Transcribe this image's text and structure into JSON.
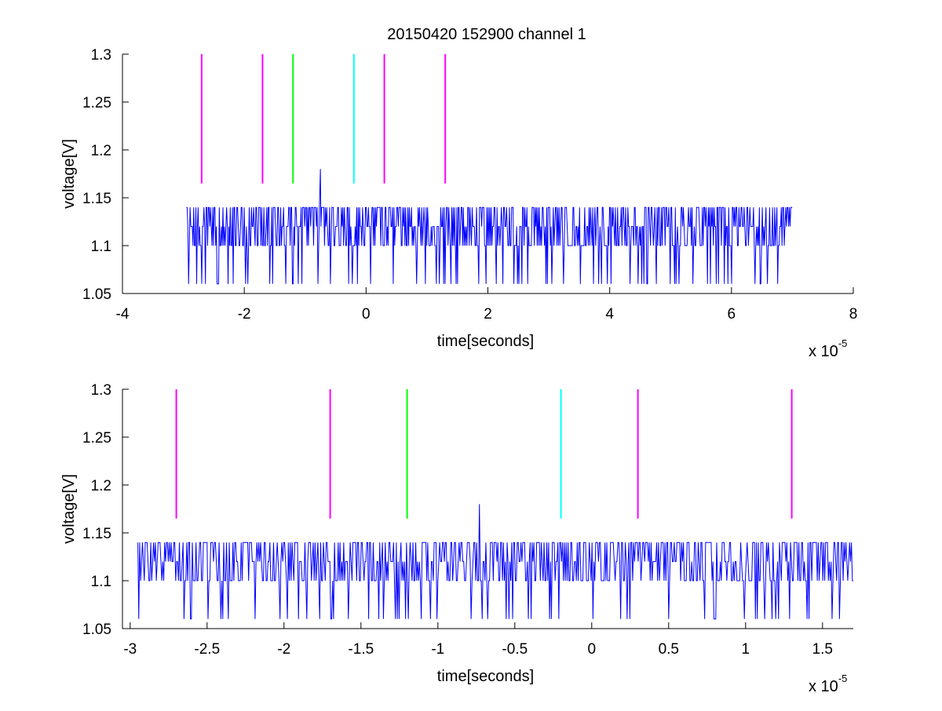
{
  "figure": {
    "title": "20150420 152900 channel 1"
  },
  "chart_data": [
    {
      "type": "line",
      "title": "20150420 152900 channel 1",
      "xlabel": "time[seconds]",
      "ylabel": "voltage[V]",
      "x_multiplier": "x 10",
      "x_exponent": "-5",
      "xlim": [
        -4,
        8
      ],
      "ylim": [
        1.05,
        1.3
      ],
      "xticks": [
        -4,
        -2,
        0,
        2,
        4,
        6,
        8
      ],
      "xtick_labels": [
        "-4",
        "-2",
        "0",
        "2",
        "4",
        "6",
        "8"
      ],
      "yticks": [
        1.05,
        1.1,
        1.15,
        1.2,
        1.25,
        1.3
      ],
      "ytick_labels": [
        "1.05",
        "1.1",
        "1.15",
        "1.2",
        "1.25",
        "1.3"
      ],
      "grid": false,
      "series": [
        {
          "color": "#0000ff",
          "signal": {
            "x_start": -2.95,
            "x_end": 7.0,
            "levels": [
              1.06,
              1.1,
              1.12,
              1.14
            ],
            "baseline": 1.1,
            "spike": {
              "x": -0.75,
              "y": 1.18
            }
          }
        }
      ],
      "markers": [
        {
          "x": -2.7,
          "y_from": 1.165,
          "y_to": 1.3,
          "color": "#ff00ff"
        },
        {
          "x": -1.7,
          "y_from": 1.165,
          "y_to": 1.3,
          "color": "#ff00ff"
        },
        {
          "x": -1.2,
          "y_from": 1.165,
          "y_to": 1.3,
          "color": "#00ff00"
        },
        {
          "x": -0.2,
          "y_from": 1.165,
          "y_to": 1.3,
          "color": "#00ffff"
        },
        {
          "x": 0.3,
          "y_from": 1.165,
          "y_to": 1.3,
          "color": "#ff00ff"
        },
        {
          "x": 1.3,
          "y_from": 1.165,
          "y_to": 1.3,
          "color": "#ff00ff"
        }
      ]
    },
    {
      "type": "line",
      "title": "",
      "xlabel": "time[seconds]",
      "ylabel": "voltage[V]",
      "x_multiplier": "x 10",
      "x_exponent": "-5",
      "xlim": [
        -3.05,
        1.7
      ],
      "ylim": [
        1.05,
        1.3
      ],
      "xticks": [
        -3,
        -2.5,
        -2,
        -1.5,
        -1,
        -0.5,
        0,
        0.5,
        1,
        1.5
      ],
      "xtick_labels": [
        "-3",
        "-2.5",
        "-2",
        "-1.5",
        "-1",
        "-0.5",
        "0",
        "0.5",
        "1",
        "1.5"
      ],
      "yticks": [
        1.05,
        1.1,
        1.15,
        1.2,
        1.25,
        1.3
      ],
      "ytick_labels": [
        "1.05",
        "1.1",
        "1.15",
        "1.2",
        "1.25",
        "1.3"
      ],
      "grid": false,
      "series": [
        {
          "color": "#0000ff",
          "signal": {
            "x_start": -2.95,
            "x_end": 1.7,
            "levels": [
              1.06,
              1.1,
              1.12,
              1.14
            ],
            "baseline": 1.1,
            "spike": {
              "x": -0.73,
              "y": 1.18
            }
          }
        }
      ],
      "markers": [
        {
          "x": -2.7,
          "y_from": 1.165,
          "y_to": 1.3,
          "color": "#ff00ff"
        },
        {
          "x": -1.7,
          "y_from": 1.165,
          "y_to": 1.3,
          "color": "#ff00ff"
        },
        {
          "x": -1.2,
          "y_from": 1.165,
          "y_to": 1.3,
          "color": "#00ff00"
        },
        {
          "x": -0.2,
          "y_from": 1.165,
          "y_to": 1.3,
          "color": "#00ffff"
        },
        {
          "x": 0.3,
          "y_from": 1.165,
          "y_to": 1.3,
          "color": "#ff00ff"
        },
        {
          "x": 1.3,
          "y_from": 1.165,
          "y_to": 1.3,
          "color": "#ff00ff"
        }
      ]
    }
  ]
}
